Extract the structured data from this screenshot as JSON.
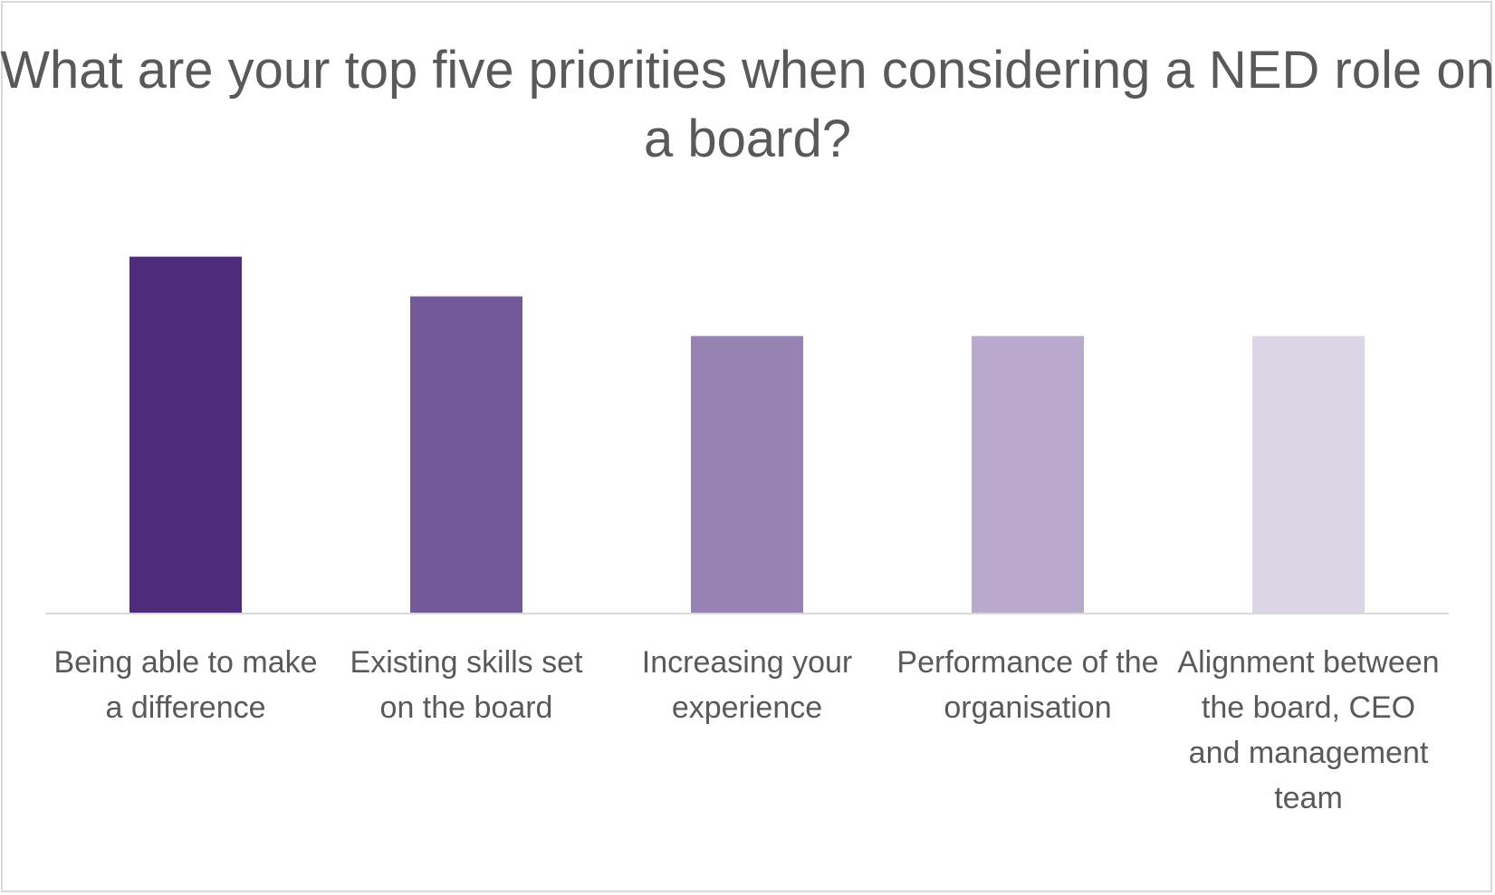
{
  "chart_data": {
    "type": "bar",
    "title": "What are your top five priorities when considering a NED role on a board?",
    "categories": [
      "Being able to make a difference",
      "Existing skills set on the board",
      "Increasing your experience",
      "Performance of the organisation",
      "Alignment between the board, CEO and management team"
    ],
    "values": [
      9,
      8,
      7,
      7,
      7
    ],
    "ylim": [
      0,
      11
    ],
    "colors": [
      "#4f2c7b",
      "#735997",
      "#9682b3",
      "#b9aacc",
      "#dcd5e6"
    ],
    "grid": false,
    "legend": "none",
    "xlabel": "",
    "ylabel": ""
  }
}
